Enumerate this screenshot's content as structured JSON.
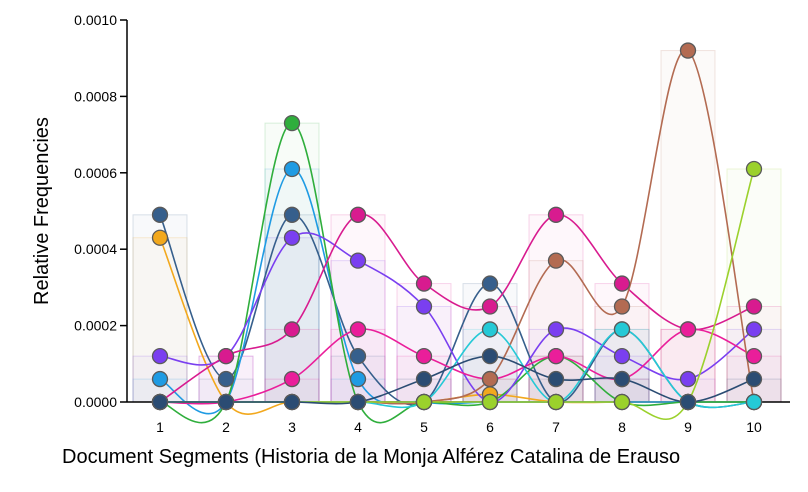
{
  "chart_data": {
    "type": "line",
    "xlabel": "Document Segments (Historia de la Monja Alférez Catalina de Erauso",
    "ylabel": "Relative Frequencies",
    "x": [
      1,
      2,
      3,
      4,
      5,
      6,
      7,
      8,
      9,
      10
    ],
    "ylim": [
      0,
      0.001
    ],
    "yticks": [
      "0.0000",
      "0.0002",
      "0.0004",
      "0.0006",
      "0.0008",
      "0.0010"
    ],
    "xticks": [
      "1",
      "2",
      "3",
      "4",
      "5",
      "6",
      "7",
      "8",
      "9",
      "10"
    ],
    "grid": false,
    "legend": "none",
    "series": [
      {
        "color": "#f2a81d",
        "values": [
          0.00043,
          0,
          0,
          0,
          0,
          2e-05,
          0,
          0,
          0,
          0
        ]
      },
      {
        "color": "#365f8c",
        "values": [
          0.00049,
          6e-05,
          0.00049,
          0.00012,
          0,
          0.00031,
          0,
          0.00019,
          0,
          0
        ]
      },
      {
        "color": "#1f9be3",
        "values": [
          6e-05,
          0,
          0.00061,
          6e-05,
          0,
          0,
          0,
          0,
          0,
          0
        ]
      },
      {
        "color": "#2fae3c",
        "values": [
          0,
          0,
          0.00073,
          0,
          0,
          0,
          0.00012,
          0,
          0,
          0
        ]
      },
      {
        "color": "#7a3ff0",
        "values": [
          0.00012,
          0.00012,
          0.00043,
          0.00037,
          0.00025,
          0,
          0.00019,
          0.00012,
          6e-05,
          0.00019
        ]
      },
      {
        "color": "#d81b8f",
        "values": [
          0,
          0.00012,
          0.00019,
          0.00049,
          0.00031,
          0.00025,
          0.00049,
          0.00031,
          0.00019,
          0.00025
        ]
      },
      {
        "color": "#ea1e9a",
        "values": [
          0,
          0,
          6e-05,
          0.00019,
          0.00012,
          6e-05,
          0.00012,
          6e-05,
          0.00019,
          0.00012
        ]
      },
      {
        "color": "#b36b52",
        "values": [
          0,
          0,
          0,
          0,
          0,
          6e-05,
          0.00037,
          0.00025,
          0.00092,
          0
        ]
      },
      {
        "color": "#25c9d6",
        "values": [
          0,
          0,
          0,
          0,
          0,
          0.00019,
          0,
          0.00019,
          0,
          0
        ]
      },
      {
        "color": "#9bd12c",
        "values": [
          0,
          0,
          0,
          0,
          0,
          0,
          0,
          0,
          0,
          0.00061
        ]
      },
      {
        "color": "#2b4c73",
        "values": [
          0,
          0,
          0,
          0,
          6e-05,
          0.00012,
          6e-05,
          6e-05,
          0,
          6e-05
        ]
      }
    ]
  }
}
